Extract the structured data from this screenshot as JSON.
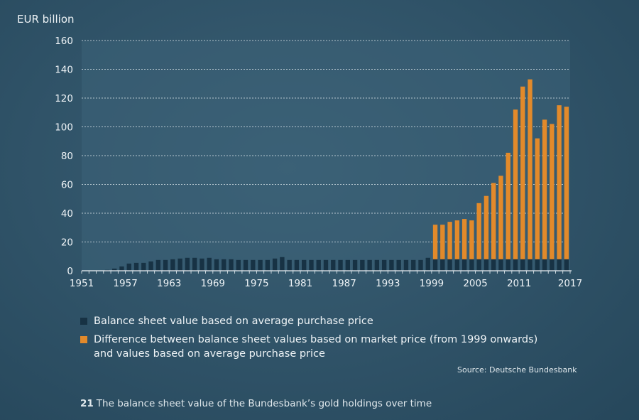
{
  "chart_data": {
    "type": "bar",
    "stacked": true,
    "ylabel": "EUR billion",
    "ylim": [
      0,
      160
    ],
    "yticks": [
      "0",
      "20",
      "40",
      "60",
      "80",
      "100",
      "120",
      "140",
      "160"
    ],
    "xticks": [
      "1951",
      "1957",
      "1963",
      "1969",
      "1975",
      "1981",
      "1987",
      "1993",
      "1999",
      "2005",
      "2011",
      "2017"
    ],
    "categories": [
      1951,
      1952,
      1953,
      1954,
      1955,
      1956,
      1957,
      1958,
      1959,
      1960,
      1961,
      1962,
      1963,
      1964,
      1965,
      1966,
      1967,
      1968,
      1969,
      1970,
      1971,
      1972,
      1973,
      1974,
      1975,
      1976,
      1977,
      1978,
      1979,
      1980,
      1981,
      1982,
      1983,
      1984,
      1985,
      1986,
      1987,
      1988,
      1989,
      1990,
      1991,
      1992,
      1993,
      1994,
      1995,
      1996,
      1997,
      1998,
      1999,
      2000,
      2001,
      2002,
      2003,
      2004,
      2005,
      2006,
      2007,
      2008,
      2009,
      2010,
      2011,
      2012,
      2013,
      2014,
      2015,
      2016,
      2017
    ],
    "series": [
      {
        "name": "Balance sheet value based on average purchase price",
        "color": "#173244",
        "values": [
          0,
          0,
          0.2,
          0.6,
          1.5,
          3,
          5,
          5.5,
          5.5,
          6.5,
          7.5,
          7.5,
          8,
          8.5,
          9,
          9,
          8.5,
          9,
          8,
          8,
          8,
          7.5,
          7.5,
          7.5,
          7.5,
          7.5,
          8.5,
          9.5,
          7.5,
          7.5,
          7.5,
          7.5,
          7.5,
          7.5,
          7.5,
          7.5,
          7.5,
          7.5,
          7.5,
          7.5,
          7.5,
          7.5,
          7.5,
          7.5,
          7.5,
          7.5,
          7.5,
          9,
          8,
          8,
          8,
          8,
          8,
          8,
          8,
          8,
          8,
          8,
          8,
          8,
          8,
          8,
          8,
          8,
          8,
          8,
          8
        ]
      },
      {
        "name": "Difference between balance sheet values based on market price (from 1999 onwards) and values based on average purchase price",
        "color": "#e28a2b",
        "values": [
          0,
          0,
          0,
          0,
          0,
          0,
          0,
          0,
          0,
          0,
          0,
          0,
          0,
          0,
          0,
          0,
          0,
          0,
          0,
          0,
          0,
          0,
          0,
          0,
          0,
          0,
          0,
          0,
          0,
          0,
          0,
          0,
          0,
          0,
          0,
          0,
          0,
          0,
          0,
          0,
          0,
          0,
          0,
          0,
          0,
          0,
          0,
          0,
          24,
          24,
          26,
          27,
          28,
          27,
          39,
          44,
          53,
          58,
          74,
          104,
          120,
          125,
          84,
          97,
          94,
          107,
          106
        ]
      }
    ]
  },
  "legend": {
    "item1": "Balance sheet value based on average purchase price",
    "item2_line1": "Difference between balance sheet values based on market price (from 1999 onwards)",
    "item2_line2": "and values based on average purchase price"
  },
  "source": "Source: Deutsche Bundesbank",
  "caption": {
    "number": "21",
    "text": "The balance sheet value of the Bundesbank’s gold holdings over time"
  }
}
